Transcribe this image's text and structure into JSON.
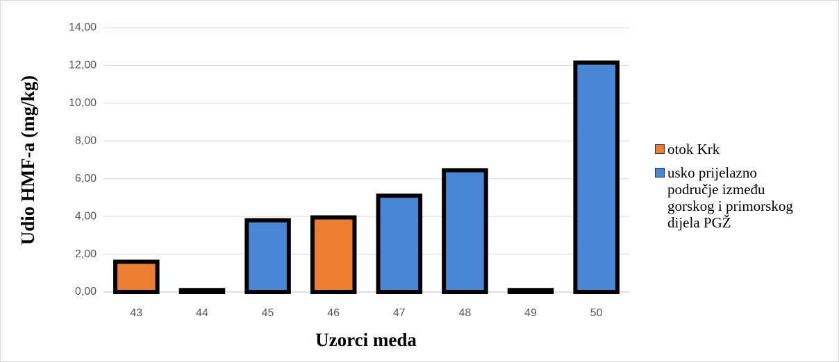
{
  "chart_data": {
    "type": "bar",
    "y_label": "Udio HMF-a (mg/kg)",
    "x_label": "Uzorci meda",
    "categories": [
      "43",
      "44",
      "45",
      "46",
      "47",
      "48",
      "49",
      "50"
    ],
    "series": [
      {
        "name": "otok Krk",
        "color": "#ed7d31",
        "values": [
          1.6,
          null,
          null,
          3.95,
          null,
          null,
          null,
          null
        ]
      },
      {
        "name": "usko prijelazno područje između gorskog i primorskog dijela PGŽ",
        "color": "#4a86d8",
        "values": [
          null,
          0.1,
          3.8,
          null,
          5.1,
          6.45,
          0.1,
          12.15
        ]
      }
    ],
    "ylim": [
      0,
      14
    ],
    "yticks": [
      {
        "value": 0,
        "label": "0,00"
      },
      {
        "value": 2,
        "label": "2,00"
      },
      {
        "value": 4,
        "label": "4,00"
      },
      {
        "value": 6,
        "label": "6,00"
      },
      {
        "value": 8,
        "label": "8,00"
      },
      {
        "value": 10,
        "label": "10,00"
      },
      {
        "value": 12,
        "label": "12,00"
      },
      {
        "value": 14,
        "label": "14,00"
      }
    ],
    "grid": true,
    "legend_position": "right"
  }
}
